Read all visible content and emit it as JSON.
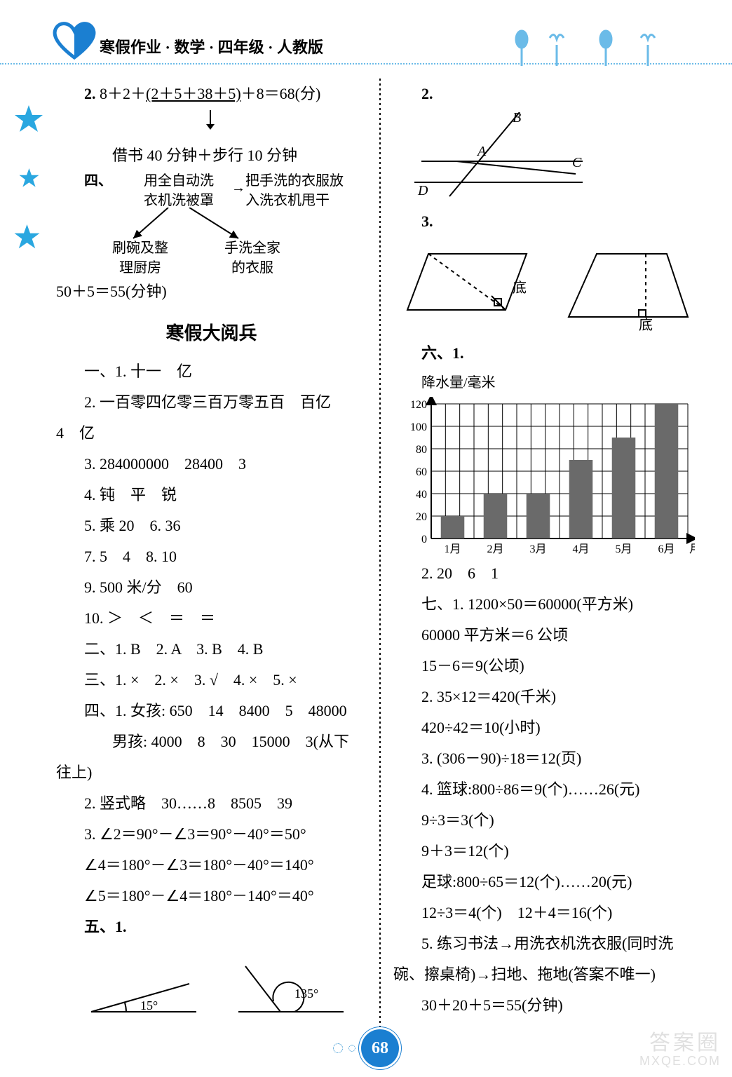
{
  "header": {
    "title": "寒假作业 · 数学 · 四年级 · 人教版"
  },
  "left": {
    "l1a": "2. ",
    "l1b": "8＋2＋",
    "l1c": "(2＋5＋38＋5)",
    "l1d": "＋8＝68(分)",
    "l2": "借书 40 分钟＋步行 10 分钟",
    "flow": {
      "si": "四、",
      "top_mid_a": "用全自动洗",
      "top_mid_b": "衣机洗被罩",
      "top_right_a": "把手洗的衣服放",
      "top_right_b": "入洗衣机甩干",
      "bot_left_a": "刷碗及整",
      "bot_left_b": "理厨房",
      "bot_right_a": "手洗全家",
      "bot_right_b": "的衣服"
    },
    "l3": "50＋5＝55(分钟)",
    "section_title": "寒假大阅兵",
    "a1": "一、1. 十一　亿",
    "a2": "2. 一百零四亿零三百万零五百　百亿",
    "a2b": "4　亿",
    "a3": "3. 284000000　28400　3",
    "a4": "4. 钝　平　锐",
    "a5": "5. 乘 20　6. 36",
    "a7": "7. 5　4　8. 10",
    "a9": "9. 500 米/分　60",
    "a10": "10. ＞　＜　＝　＝",
    "b1": "二、1. B　2. A　3. B　4. B",
    "c1": "三、1. ×　2. ×　3. √　4. ×　5. ×",
    "d1": "四、1. 女孩: 650　14　8400　5　48000",
    "d2": "男孩: 4000　8　30　15000　3(从下",
    "d3": "往上)",
    "e2": "2. 竖式略　30……8　8505　39",
    "f3a": "3. ∠2＝90°－∠3＝90°－40°＝50°",
    "f3b": "∠4＝180°－∠3＝180°－40°＝140°",
    "f3c": "∠5＝180°－∠4＝180°－140°＝40°",
    "g5": "五、1.",
    "angle1": "15°",
    "angle2": "135°"
  },
  "right": {
    "r2": "2.",
    "labelsABCD": {
      "A": "A",
      "B": "B",
      "C": "C",
      "D": "D"
    },
    "r3": "3.",
    "di": "底",
    "s6": "六、1.",
    "chart": {
      "ylabel": "降水量/毫米",
      "ymax": 120,
      "ystep": 20,
      "yticks": [
        0,
        20,
        40,
        60,
        80,
        100,
        120
      ],
      "categories": [
        "1月",
        "2月",
        "3月",
        "4月",
        "5月",
        "6月"
      ],
      "values": [
        20,
        40,
        40,
        70,
        90,
        120
      ],
      "bar_color": "#6a6a6a",
      "grid_color": "#000000",
      "bg": "#ffffff",
      "xlabel_suffix": "月份"
    },
    "t2": "2. 20　6　1",
    "q7a": "七、1. 1200×50＝60000(平方米)",
    "q7b": "60000 平方米＝6 公顷",
    "q7c": "15－6＝9(公顷)",
    "q2a": "2. 35×12＝420(千米)",
    "q2b": "420÷42＝10(小时)",
    "q3": "3. (306－90)÷18＝12(页)",
    "q4a": "4. 篮球:800÷86＝9(个)……26(元)",
    "q4b": "9÷3＝3(个)",
    "q4c": "9＋3＝12(个)",
    "q4d": "足球:800÷65＝12(个)……20(元)",
    "q4e": "12÷3＝4(个)　12＋4＝16(个)",
    "q5a": "5. 练习书法→用洗衣机洗衣服(同时洗",
    "q5b": "碗、擦桌椅)→扫地、拖地(答案不唯一)",
    "q5c": "30＋20＋5＝55(分钟)"
  },
  "footer": {
    "page": "68"
  },
  "watermark": {
    "line1": "答案圈",
    "line2": "MXQE.COM"
  },
  "colors": {
    "accent_blue": "#1b7fd1",
    "light_blue": "#6bbbe8",
    "star_blue": "#2aa7e0"
  }
}
